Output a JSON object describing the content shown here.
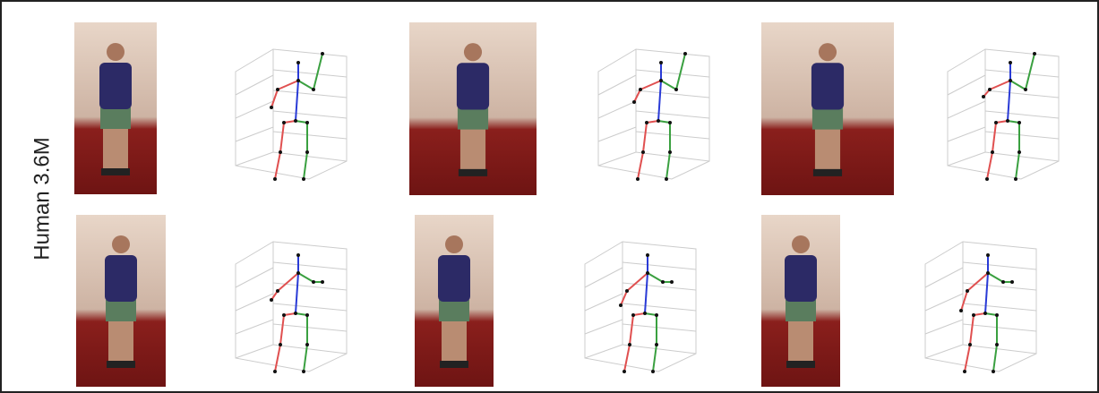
{
  "row_label": "Human 3.6M"
}
